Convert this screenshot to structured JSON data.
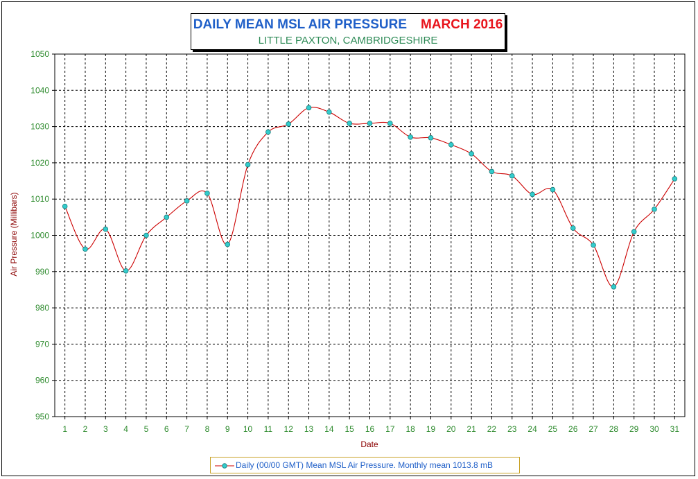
{
  "title": {
    "main": "DAILY MEAN MSL AIR PRESSURE",
    "month": "MARCH 2016",
    "subtitle": "LITTLE PAXTON, CAMBRIDGESHIRE"
  },
  "legend": {
    "label": "Daily (00/00 GMT) Mean MSL Air Pressure. Monthly mean 1013.8 mB"
  },
  "colors": {
    "line": "#cc0000",
    "marker_fill": "#33cccc",
    "axis_text": "#2e8b2e",
    "axis_label": "#8b0000",
    "grid": "#000000"
  },
  "chart_data": {
    "type": "line",
    "xlabel": "Date",
    "ylabel": "Air Pressure (Millibars)",
    "ylim": [
      950,
      1050
    ],
    "ytick_step": 10,
    "grid": true,
    "legend_position": "bottom",
    "categories": [
      "1",
      "2",
      "3",
      "4",
      "5",
      "6",
      "7",
      "8",
      "9",
      "10",
      "11",
      "12",
      "13",
      "14",
      "15",
      "16",
      "17",
      "18",
      "19",
      "20",
      "21",
      "22",
      "23",
      "24",
      "25",
      "26",
      "27",
      "28",
      "29",
      "30",
      "31"
    ],
    "series": [
      {
        "name": "Daily (00/00 GMT) Mean MSL Air Pressure. Monthly mean 1013.8 mB",
        "values": [
          1008,
          996.2,
          1001.7,
          990.2,
          1000,
          1005,
          1009.5,
          1011.6,
          997.5,
          1019.5,
          1028.5,
          1030.7,
          1035.2,
          1034,
          1030.9,
          1030.9,
          1030.9,
          1027.1,
          1026.9,
          1025,
          1022.5,
          1017.6,
          1016.4,
          1011.3,
          1012.6,
          1002,
          997.3,
          985.8,
          1001,
          1007.2,
          1015.6
        ]
      }
    ]
  }
}
